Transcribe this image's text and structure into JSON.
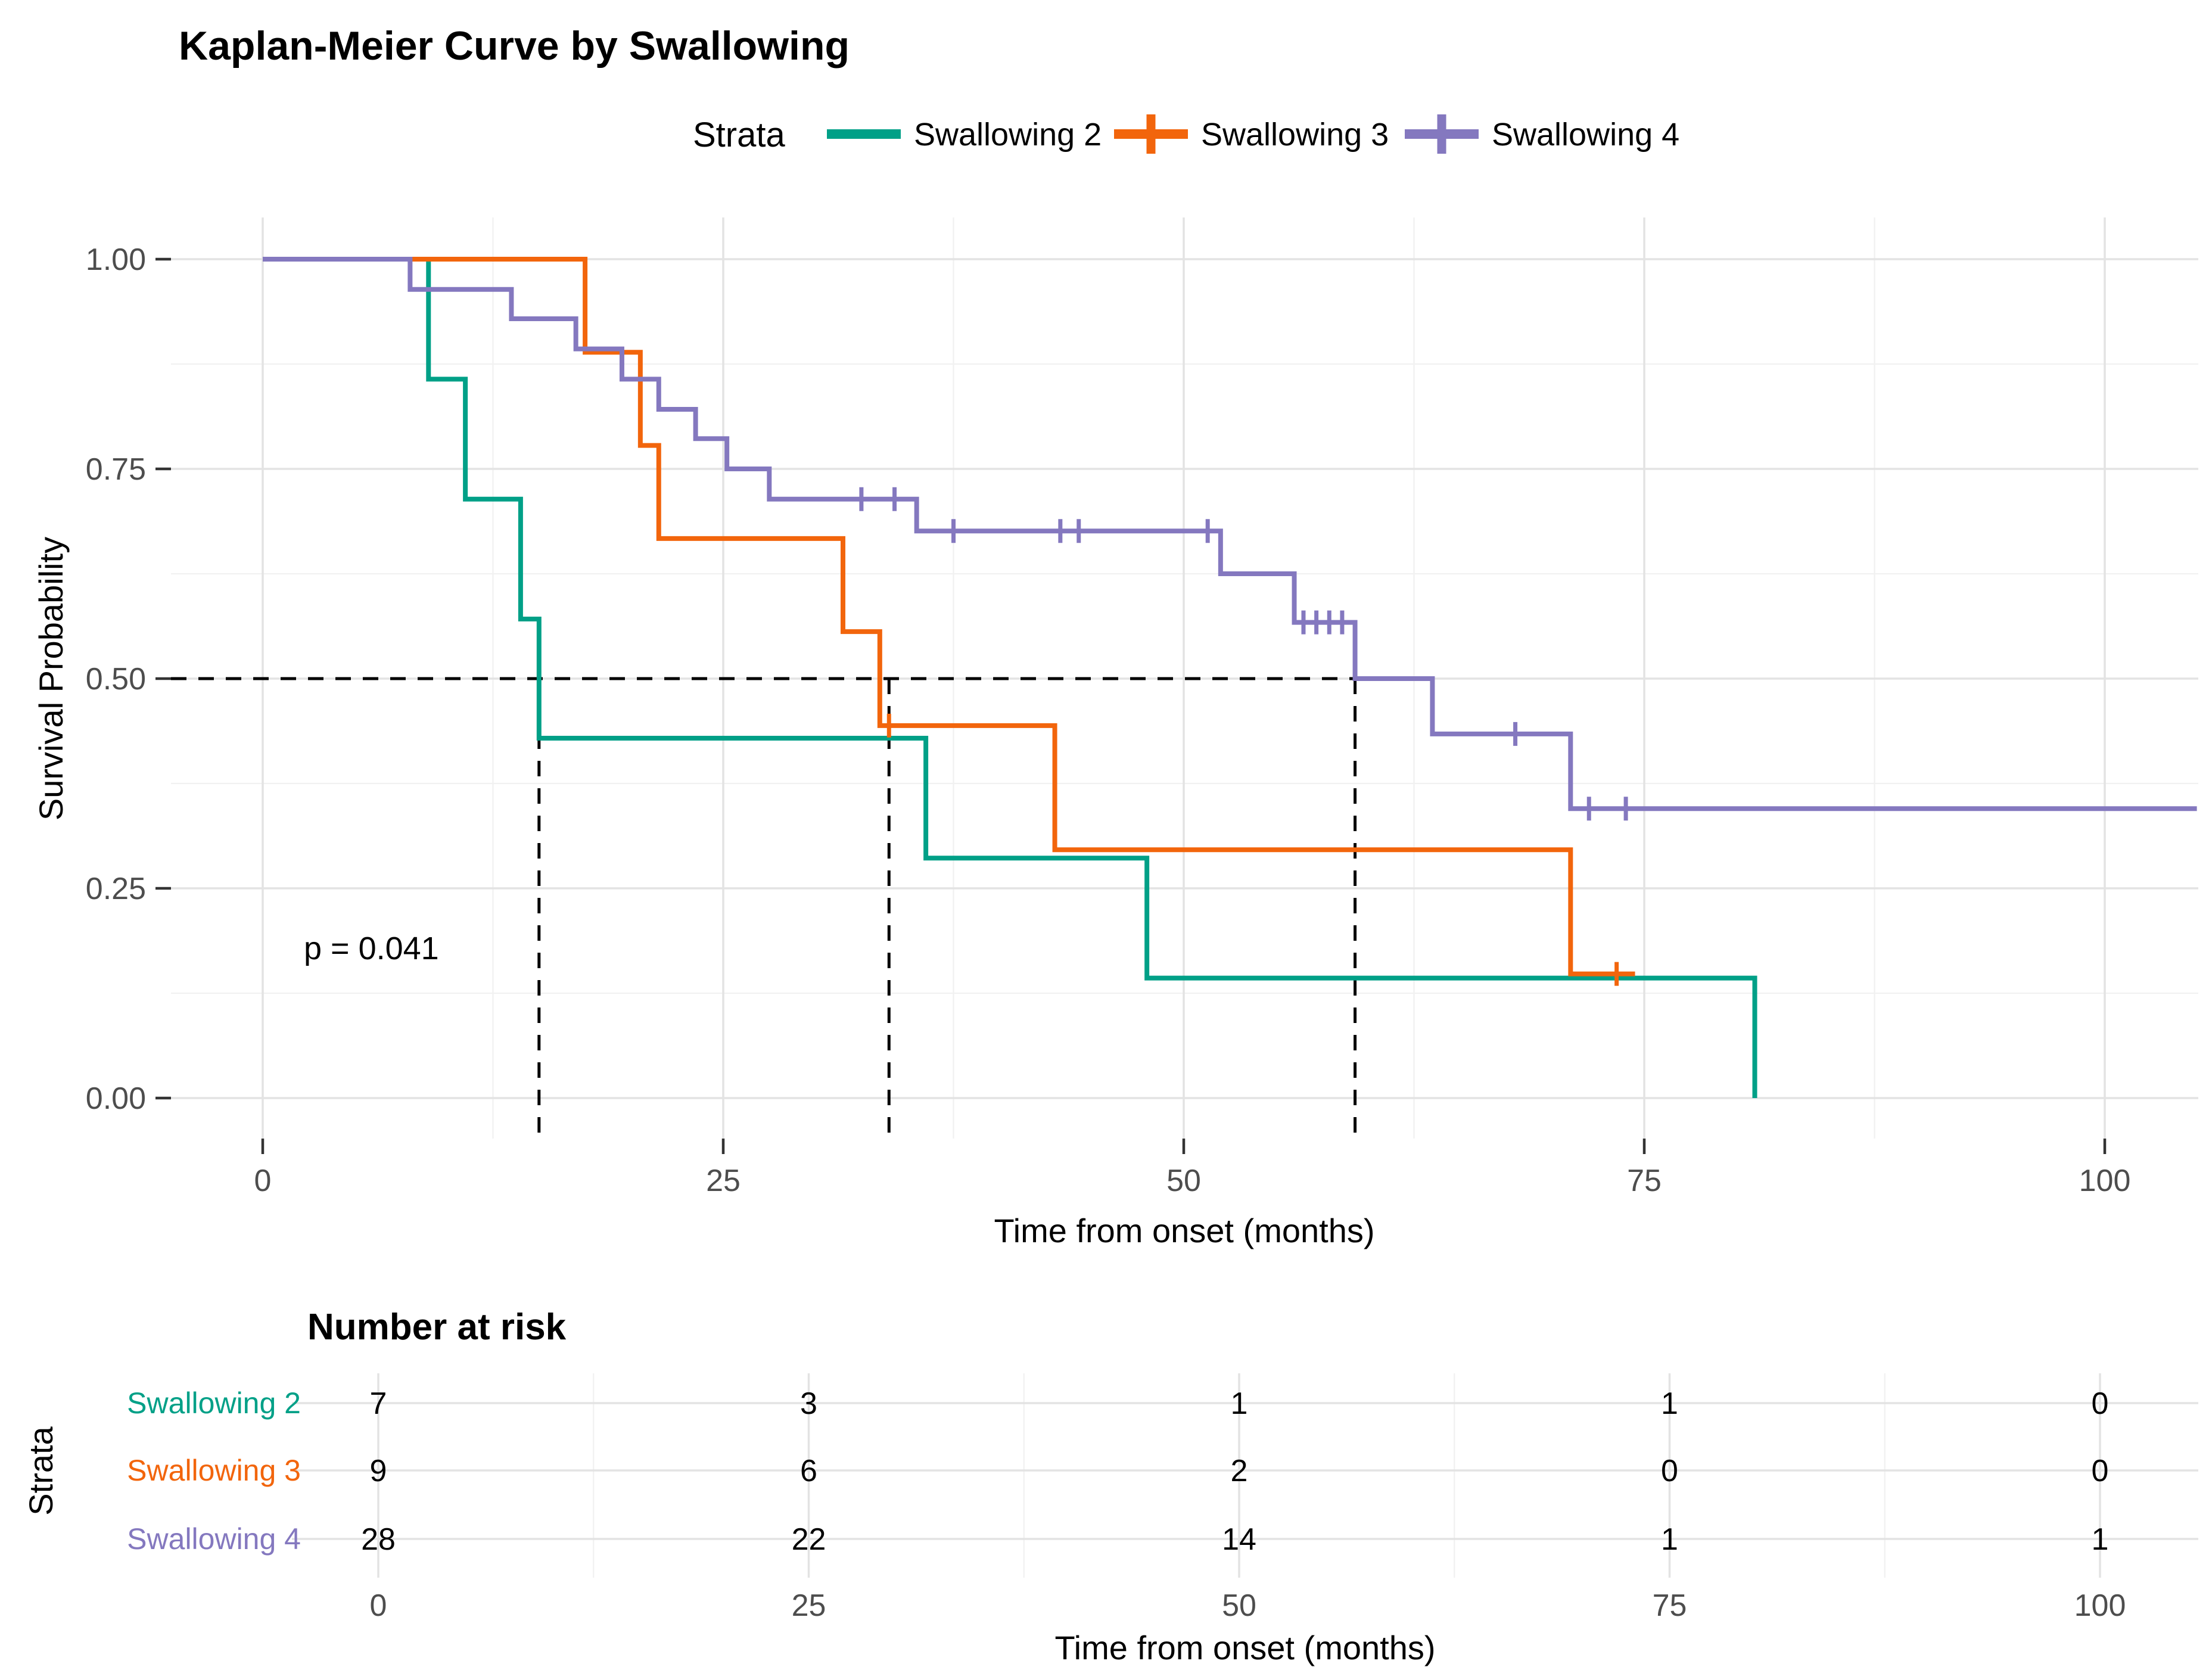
{
  "title": "Kaplan-Meier Curve by Swallowing",
  "legend": {
    "title": "Strata",
    "items": [
      {
        "label": "Swallowing 2",
        "color": "#00A087",
        "censored_key": false
      },
      {
        "label": "Swallowing 3",
        "color": "#F2650C",
        "censored_key": true
      },
      {
        "label": "Swallowing 4",
        "color": "#8478BF",
        "censored_key": true
      }
    ]
  },
  "y_axis": {
    "title": "Survival Probability",
    "tick_labels": [
      "1.00",
      "0.75",
      "0.50",
      "0.25",
      "0.00"
    ],
    "tick_values": [
      1.0,
      0.75,
      0.5,
      0.25,
      0.0
    ]
  },
  "x_axis": {
    "title": "Time from onset (months)",
    "tick_labels": [
      "0",
      "25",
      "50",
      "75",
      "100"
    ],
    "tick_values": [
      0,
      25,
      50,
      75,
      100
    ]
  },
  "annotation": {
    "p_value": "p = 0.041"
  },
  "chart_data": {
    "type": "line",
    "subtype": "kaplan-meier-step",
    "title": "Kaplan-Meier Curve by Swallowing",
    "xlabel": "Time from onset (months)",
    "ylabel": "Survival Probability",
    "xlim": [
      -5,
      105.5
    ],
    "ylim": [
      -0.05,
      1.05
    ],
    "x_ticks": [
      0,
      25,
      50,
      75,
      100
    ],
    "y_ticks": [
      0,
      0.25,
      0.5,
      0.75,
      1.0
    ],
    "x_minor_gridlines": [
      12.5,
      37.5,
      62.5,
      87.5
    ],
    "y_minor_gridlines": [
      0.125,
      0.375,
      0.625,
      0.875
    ],
    "grid": true,
    "legend_position": "top",
    "p_value": 0.041,
    "median_reference_level": 0.5,
    "series": [
      {
        "name": "Swallowing 2",
        "color": "#00A087",
        "n_at_start": 7,
        "start": [
          0,
          1.0
        ],
        "steps": [
          [
            9,
            0.857
          ],
          [
            11,
            0.714
          ],
          [
            14,
            0.571
          ],
          [
            15,
            0.429
          ],
          [
            36,
            0.286
          ],
          [
            48,
            0.143
          ],
          [
            81,
            0.0
          ]
        ],
        "censors": [],
        "end_time": 81,
        "median_months": 15
      },
      {
        "name": "Swallowing 3",
        "color": "#F2650C",
        "n_at_start": 9,
        "start": [
          0,
          1.0
        ],
        "steps": [
          [
            17.5,
            0.889
          ],
          [
            20.5,
            0.778
          ],
          [
            21.5,
            0.667
          ],
          [
            31.5,
            0.556
          ],
          [
            33.5,
            0.444
          ],
          [
            43,
            0.296
          ],
          [
            71,
            0.148
          ]
        ],
        "censors": [
          [
            34,
            0.444
          ],
          [
            73.5,
            0.148
          ]
        ],
        "end_time": 74.5,
        "median_months": 34
      },
      {
        "name": "Swallowing 4",
        "color": "#8478BF",
        "n_at_start": 28,
        "start": [
          0,
          1.0
        ],
        "steps": [
          [
            8,
            0.964
          ],
          [
            13.5,
            0.929
          ],
          [
            17,
            0.893
          ],
          [
            19.5,
            0.857
          ],
          [
            21.5,
            0.821
          ],
          [
            23.5,
            0.786
          ],
          [
            25.2,
            0.75
          ],
          [
            27.5,
            0.714
          ],
          [
            35.5,
            0.676
          ],
          [
            52,
            0.625
          ],
          [
            56,
            0.567
          ],
          [
            59.3,
            0.5
          ],
          [
            63.5,
            0.434
          ],
          [
            71,
            0.345
          ]
        ],
        "censors": [
          [
            32.5,
            0.714
          ],
          [
            34.3,
            0.714
          ],
          [
            37.5,
            0.676
          ],
          [
            43.3,
            0.676
          ],
          [
            44.3,
            0.676
          ],
          [
            51.3,
            0.676
          ],
          [
            56.5,
            0.567
          ],
          [
            57.2,
            0.567
          ],
          [
            57.9,
            0.567
          ],
          [
            58.6,
            0.567
          ],
          [
            68,
            0.434
          ],
          [
            72,
            0.345
          ],
          [
            74,
            0.345
          ]
        ],
        "end_time": 105,
        "median_months": 59.3
      }
    ]
  },
  "risk_table": {
    "title": "Number at risk",
    "y_axis_label": "Strata",
    "x_axis_label": "Time from onset (months)",
    "time_points": [
      0,
      25,
      50,
      75,
      100
    ],
    "time_labels": [
      "0",
      "25",
      "50",
      "75",
      "100"
    ],
    "rows": [
      {
        "label": "Swallowing 2",
        "color": "#00A087",
        "counts": [
          "7",
          "3",
          "1",
          "1",
          "0"
        ]
      },
      {
        "label": "Swallowing 3",
        "color": "#F2650C",
        "counts": [
          "9",
          "6",
          "2",
          "0",
          "0"
        ]
      },
      {
        "label": "Swallowing 4",
        "color": "#8478BF",
        "counts": [
          "28",
          "22",
          "14",
          "1",
          "1"
        ]
      }
    ]
  },
  "colors": {
    "grid_major": "#E3E3E3",
    "grid_minor": "#F1F1F1",
    "tick_text": "#4D4D4D",
    "axis_tick": "#333333",
    "dashed_reference": "#000000",
    "text": "#000000"
  }
}
